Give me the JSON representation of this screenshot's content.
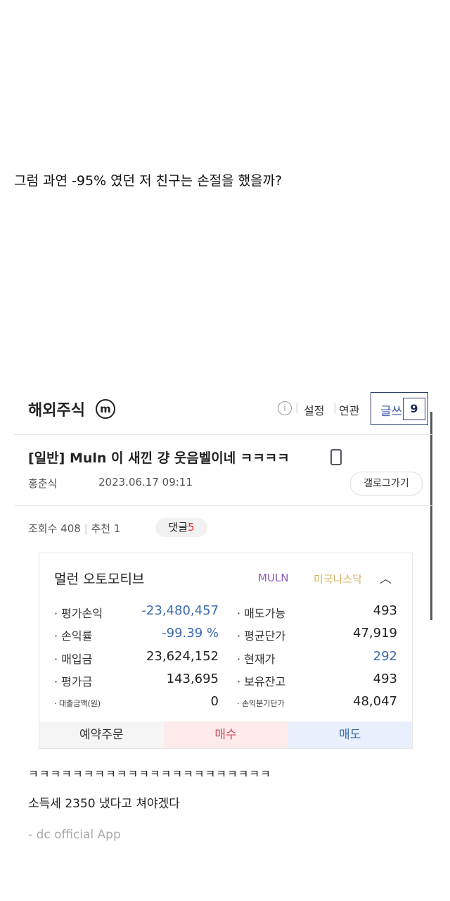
{
  "question": "그럼 과연 -95% 였던 저 친구는 손절을 했을까?",
  "header": {
    "title": "해외주식",
    "logo_letter": "m",
    "links": [
      "설정",
      "연관"
    ],
    "write_label": "글쓰",
    "badge": "9"
  },
  "post": {
    "title": "[일반] Muln 이 새낀 걍 웃음벨이네 ㅋㅋㅋㅋ",
    "author": "홍춘식",
    "date": "2023.06.17 09:11",
    "gallery_button": "갤로그가기",
    "views": "조회수 408",
    "recommend": "추천 1",
    "comments_label": "댓글",
    "comments_count": "5"
  },
  "stock": {
    "name": "멀런 오토모티브",
    "ticker": "MULN",
    "market": "미국나스닥",
    "left": [
      {
        "label": "평가손익",
        "value": "-23,480,457",
        "color": "#3a6ab0"
      },
      {
        "label": "손익률",
        "value": "-99.39 %",
        "color": "#3a6ab0"
      },
      {
        "label": "매입금",
        "value": "23,624,152"
      },
      {
        "label": "평가금",
        "value": "143,695"
      },
      {
        "label": "대출금액(원)",
        "value": "0"
      }
    ],
    "right": [
      {
        "label": "매도가능",
        "value": "493"
      },
      {
        "label": "평균단가",
        "value": "47,919"
      },
      {
        "label": "현재가",
        "value": "292",
        "color": "#3a6ab0"
      },
      {
        "label": "보유잔고",
        "value": "493"
      },
      {
        "label": "손익분기단가",
        "value": "48,047"
      }
    ],
    "buttons": [
      "예약주문",
      "매수",
      "매도"
    ]
  },
  "body": {
    "laugh": "ㅋㅋㅋㅋㅋㅋㅋㅋㅋㅋㅋㅋㅋㅋㅋㅋㅋㅋㅋㅋㅋㅋ",
    "line": "소득세 2350 냈다고 쳐야겠다",
    "signature": "- dc official App"
  }
}
